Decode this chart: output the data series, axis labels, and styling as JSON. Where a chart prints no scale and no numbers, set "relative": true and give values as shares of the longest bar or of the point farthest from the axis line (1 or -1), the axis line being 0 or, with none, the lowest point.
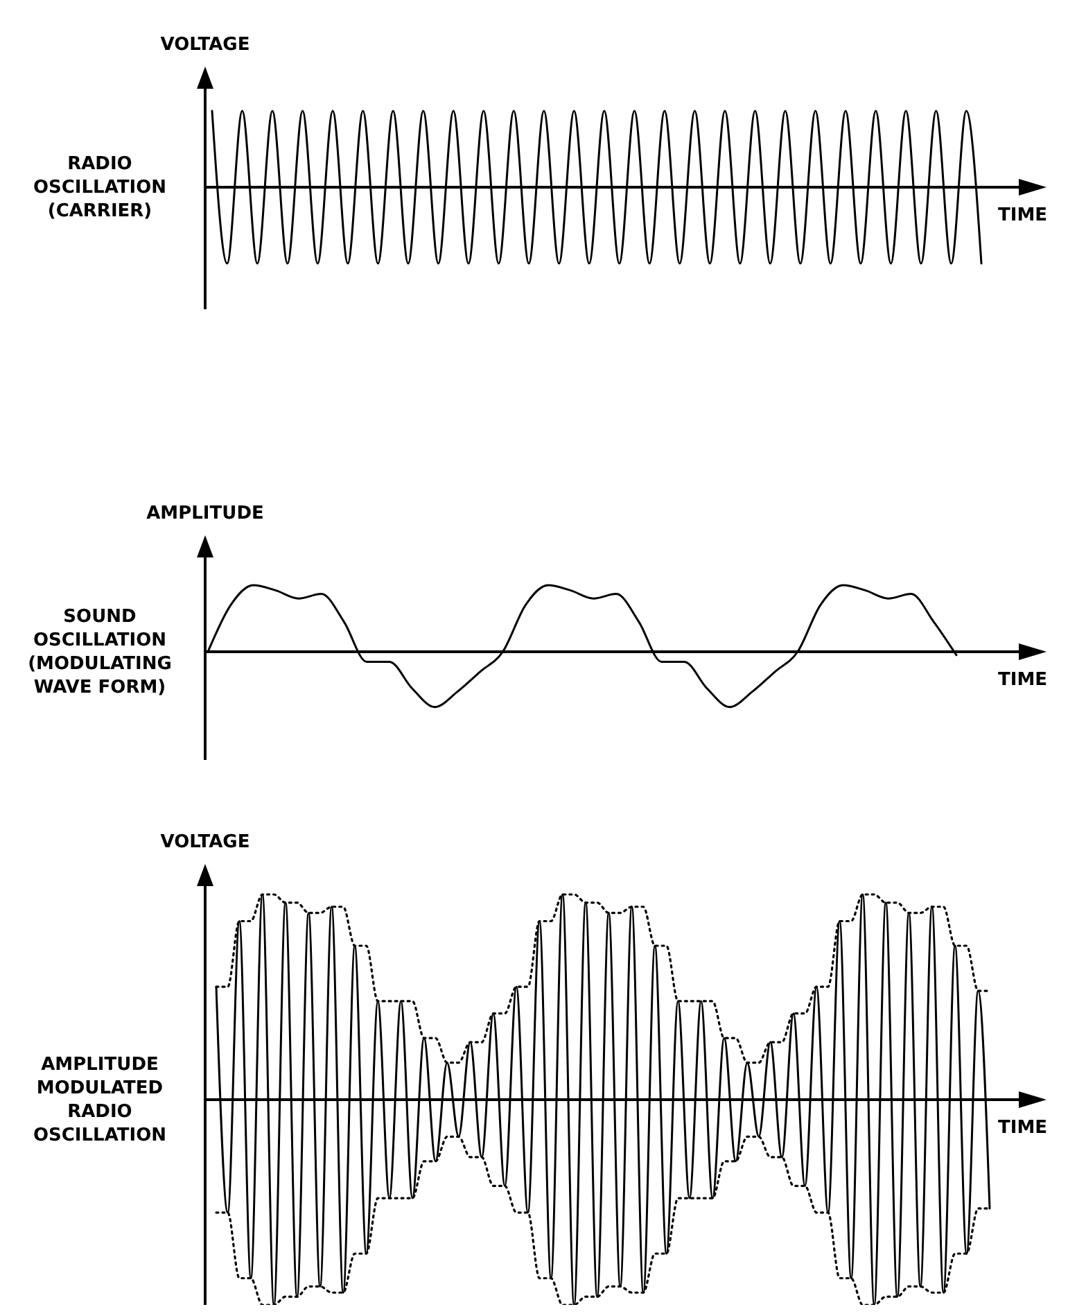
{
  "chart_data": [
    {
      "type": "line",
      "relative": true,
      "title": "RADIO OSCILLATION (CARRIER)",
      "ylabel": "VOLTAGE",
      "xlabel": "TIME",
      "categories": [
        null,
        null,
        null,
        null,
        null,
        null,
        null,
        null,
        null,
        null,
        null,
        null,
        null,
        null,
        null,
        null,
        null,
        null,
        null,
        null,
        null,
        null,
        null,
        null,
        null,
        null,
        null,
        null,
        null,
        null,
        null,
        null,
        null,
        null,
        null,
        null,
        null,
        null,
        null,
        null,
        null,
        null,
        null,
        null,
        null,
        null,
        null,
        null,
        null,
        null,
        null,
        null
      ],
      "series": [
        {
          "color": "#000000",
          "line_style": "solid",
          "values": [
            1,
            -1,
            1,
            -1,
            1,
            -1,
            1,
            -1,
            1,
            -1,
            1,
            -1,
            1,
            -1,
            1,
            -1,
            1,
            -1,
            1,
            -1,
            1,
            -1,
            1,
            -1,
            1,
            -1,
            1,
            -1,
            1,
            -1,
            1,
            -1,
            1,
            -1,
            1,
            -1,
            1,
            -1,
            1,
            -1,
            1,
            -1,
            1,
            -1,
            1,
            -1,
            1,
            -1,
            1,
            -1,
            1,
            -1
          ]
        }
      ]
    },
    {
      "type": "line",
      "relative": true,
      "title": "SOUND OSCILLATION (MODULATING WAVE FORM)",
      "ylabel": "AMPLITUDE",
      "xlabel": "TIME",
      "categories": [
        null,
        null,
        null,
        null,
        null,
        null,
        null,
        null,
        null,
        null,
        null,
        null,
        null,
        null,
        null,
        null,
        null,
        null,
        null,
        null,
        null,
        null,
        null,
        null,
        null,
        null,
        null,
        null,
        null,
        null,
        null,
        null,
        null,
        null
      ],
      "series": [
        {
          "color": "#000000",
          "line_style": "solid",
          "values": [
            0,
            0.7,
            1,
            0.92,
            0.8,
            0.87,
            0.45,
            -0.15,
            -0.15,
            -0.55,
            -0.83,
            -0.6,
            -0.3,
            0,
            0.7,
            1,
            0.92,
            0.8,
            0.87,
            0.45,
            -0.15,
            -0.15,
            -0.55,
            -0.83,
            -0.6,
            -0.3,
            0,
            0.7,
            1,
            0.92,
            0.8,
            0.87,
            0.45,
            -0.05
          ]
        }
      ]
    },
    {
      "type": "line",
      "relative": true,
      "title": "AMPLITUDE MODULATED RADIO OSCILLATION",
      "ylabel": "VOLTAGE",
      "xlabel": "TIME",
      "categories": [
        null,
        null,
        null,
        null,
        null,
        null,
        null,
        null,
        null,
        null,
        null,
        null,
        null,
        null,
        null,
        null,
        null,
        null,
        null,
        null,
        null,
        null,
        null,
        null,
        null,
        null,
        null,
        null,
        null,
        null,
        null,
        null,
        null,
        null,
        null,
        null,
        null,
        null,
        null,
        null,
        null,
        null,
        null,
        null,
        null,
        null,
        null,
        null,
        null,
        null,
        null,
        null,
        null,
        null,
        null,
        null,
        null,
        null,
        null,
        null,
        null,
        null,
        null,
        null,
        null,
        null,
        null,
        null
      ],
      "series": [
        {
          "color": "#000000",
          "line_style": "solid",
          "values": [
            0.55,
            -0.55,
            0.87,
            -0.87,
            1,
            -1,
            0.96,
            -0.96,
            0.91,
            -0.91,
            0.94,
            -0.94,
            0.75,
            -0.75,
            0.48,
            -0.48,
            0.48,
            -0.48,
            0.3,
            -0.3,
            0.18,
            -0.18,
            0.28,
            -0.28,
            0.42,
            -0.42,
            0.55,
            -0.55,
            0.87,
            -0.87,
            1,
            -1,
            0.96,
            -0.96,
            0.91,
            -0.91,
            0.94,
            -0.94,
            0.75,
            -0.75,
            0.48,
            -0.48,
            0.48,
            -0.48,
            0.3,
            -0.3,
            0.18,
            -0.18,
            0.28,
            -0.28,
            0.42,
            -0.42,
            0.55,
            -0.55,
            0.87,
            -0.87,
            1,
            -1,
            0.96,
            -0.96,
            0.91,
            -0.91,
            0.94,
            -0.94,
            0.75,
            -0.75,
            0.53,
            -0.53
          ]
        },
        {
          "color": "#000000",
          "line_style": "dotted",
          "values": [
            0.55,
            0.55,
            0.87,
            0.87,
            1,
            1,
            0.96,
            0.96,
            0.91,
            0.91,
            0.94,
            0.94,
            0.75,
            0.75,
            0.48,
            0.48,
            0.48,
            0.48,
            0.3,
            0.3,
            0.18,
            0.18,
            0.28,
            0.28,
            0.42,
            0.42,
            0.55,
            0.55,
            0.87,
            0.87,
            1,
            1,
            0.96,
            0.96,
            0.91,
            0.91,
            0.94,
            0.94,
            0.75,
            0.75,
            0.48,
            0.48,
            0.48,
            0.48,
            0.3,
            0.3,
            0.18,
            0.18,
            0.28,
            0.28,
            0.42,
            0.42,
            0.55,
            0.55,
            0.87,
            0.87,
            1,
            1,
            0.96,
            0.96,
            0.91,
            0.91,
            0.94,
            0.94,
            0.75,
            0.75,
            0.53,
            0.53
          ]
        },
        {
          "color": "#000000",
          "line_style": "dotted",
          "values": [
            -0.55,
            -0.55,
            -0.87,
            -0.87,
            -1,
            -1,
            -0.96,
            -0.96,
            -0.91,
            -0.91,
            -0.94,
            -0.94,
            -0.75,
            -0.75,
            -0.48,
            -0.48,
            -0.48,
            -0.48,
            -0.3,
            -0.3,
            -0.18,
            -0.18,
            -0.28,
            -0.28,
            -0.42,
            -0.42,
            -0.55,
            -0.55,
            -0.87,
            -0.87,
            -1,
            -1,
            -0.96,
            -0.96,
            -0.91,
            -0.91,
            -0.94,
            -0.94,
            -0.75,
            -0.75,
            -0.48,
            -0.48,
            -0.48,
            -0.48,
            -0.3,
            -0.3,
            -0.18,
            -0.18,
            -0.28,
            -0.28,
            -0.42,
            -0.42,
            -0.55,
            -0.55,
            -0.87,
            -0.87,
            -1,
            -1,
            -0.96,
            -0.96,
            -0.91,
            -0.91,
            -0.94,
            -0.94,
            -0.75,
            -0.75,
            -0.53,
            -0.53
          ]
        }
      ]
    }
  ]
}
